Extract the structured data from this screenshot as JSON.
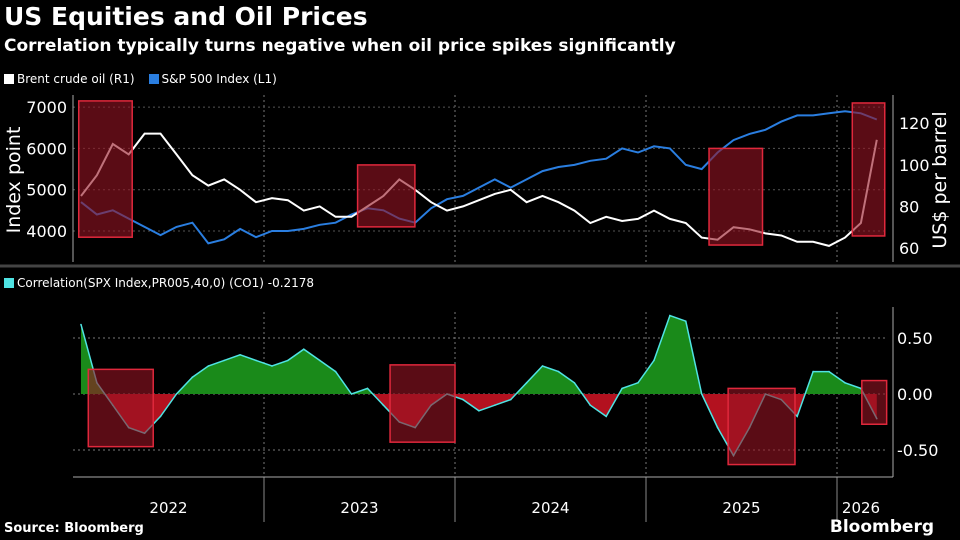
{
  "title": "US Equities and Oil Prices",
  "subtitle": "Correlation typically turns negative when oil price spikes significantly",
  "source": "Source: Bloomberg",
  "brand": "Bloomberg",
  "colors": {
    "background": "#000000",
    "oil": "#ffffff",
    "spx": "#2a7ee0",
    "corr": "#4fe3e3",
    "positive_fill": "#1a8a1a",
    "negative_fill": "#b3111f",
    "highlight": "#e0283c"
  },
  "chart_data": [
    {
      "type": "line",
      "legend": [
        {
          "name": "Brent crude oil (R1)",
          "color": "#ffffff"
        },
        {
          "name": "S&P 500 Index (L1)",
          "color": "#2a7ee0"
        }
      ],
      "ylabel_left": "Index point",
      "ylabel_right": "US$ per barrel",
      "ylim_left": [
        3300,
        7300
      ],
      "ylim_right": [
        57,
        137
      ],
      "yticks_left": [
        "7000",
        "6000",
        "5000",
        "4000"
      ],
      "yticks_right": [
        "120",
        "100",
        "80",
        "60"
      ],
      "x_start": "2022-01",
      "x_step": "month",
      "series": [
        {
          "name": "S&P 500 Index (L1)",
          "axis": "left",
          "values": [
            4700,
            4400,
            4500,
            4300,
            4100,
            3900,
            4100,
            4200,
            3700,
            3800,
            4050,
            3850,
            4000,
            4000,
            4050,
            4150,
            4200,
            4400,
            4550,
            4500,
            4300,
            4200,
            4550,
            4770,
            4850,
            5050,
            5250,
            5050,
            5250,
            5450,
            5550,
            5600,
            5700,
            5750,
            6000,
            5900,
            6050,
            6000,
            5600,
            5500,
            5900,
            6200,
            6350,
            6450,
            6650,
            6800,
            6800,
            6850,
            6900,
            6850,
            6700
          ]
        },
        {
          "name": "Brent crude oil (R1)",
          "axis": "right",
          "values": [
            85,
            95,
            110,
            105,
            115,
            115,
            105,
            95,
            90,
            93,
            88,
            82,
            84,
            83,
            78,
            80,
            75,
            75,
            80,
            85,
            93,
            88,
            82,
            78,
            80,
            83,
            86,
            88,
            82,
            85,
            82,
            78,
            72,
            75,
            73,
            74,
            78,
            74,
            72,
            65,
            64,
            70,
            69,
            67,
            66,
            63,
            63,
            61,
            65,
            72,
            112
          ]
        }
      ],
      "highlight_periods": [
        {
          "from": 2022.03,
          "to": 2022.31,
          "ymin": 3850,
          "ymax": 7150
        },
        {
          "from": 2023.49,
          "to": 2023.79,
          "ymin": 4100,
          "ymax": 5600
        },
        {
          "from": 2025.33,
          "to": 2025.61,
          "ymin": 3660,
          "ymax": 6000
        },
        {
          "from": 2026.08,
          "to": 2026.25,
          "ymin": 3880,
          "ymax": 7100
        }
      ]
    },
    {
      "type": "area",
      "legend": [
        {
          "name": "Correlation(SPX Index,PR005,40,0) (CO1) -0.2178",
          "color": "#4fe3e3"
        }
      ],
      "ylim": [
        -0.75,
        0.85
      ],
      "yticks": [
        "0.50",
        "0.00",
        "-0.50"
      ],
      "x_start": "2022-01",
      "x_step": "month",
      "values": [
        0.62,
        0.1,
        -0.1,
        -0.3,
        -0.35,
        -0.2,
        0.0,
        0.15,
        0.25,
        0.3,
        0.35,
        0.3,
        0.25,
        0.3,
        0.4,
        0.3,
        0.2,
        0.0,
        0.05,
        -0.1,
        -0.25,
        -0.3,
        -0.1,
        0.0,
        -0.05,
        -0.15,
        -0.1,
        -0.05,
        0.1,
        0.25,
        0.2,
        0.1,
        -0.1,
        -0.2,
        0.05,
        0.1,
        0.3,
        0.7,
        0.65,
        0.0,
        -0.3,
        -0.55,
        -0.3,
        0.0,
        -0.05,
        -0.2,
        0.2,
        0.2,
        0.1,
        0.05,
        -0.22
      ],
      "highlight_periods": [
        {
          "from": 2022.08,
          "to": 2022.42,
          "ymin": -0.47,
          "ymax": 0.22
        },
        {
          "from": 2023.66,
          "to": 2024.0,
          "ymin": -0.43,
          "ymax": 0.26
        },
        {
          "from": 2025.43,
          "to": 2025.78,
          "ymin": -0.63,
          "ymax": 0.05
        },
        {
          "from": 2026.13,
          "to": 2026.26,
          "ymin": -0.27,
          "ymax": 0.12
        }
      ]
    }
  ],
  "x_axis": {
    "labels": [
      "2022",
      "2023",
      "2024",
      "2025",
      "2026"
    ]
  }
}
